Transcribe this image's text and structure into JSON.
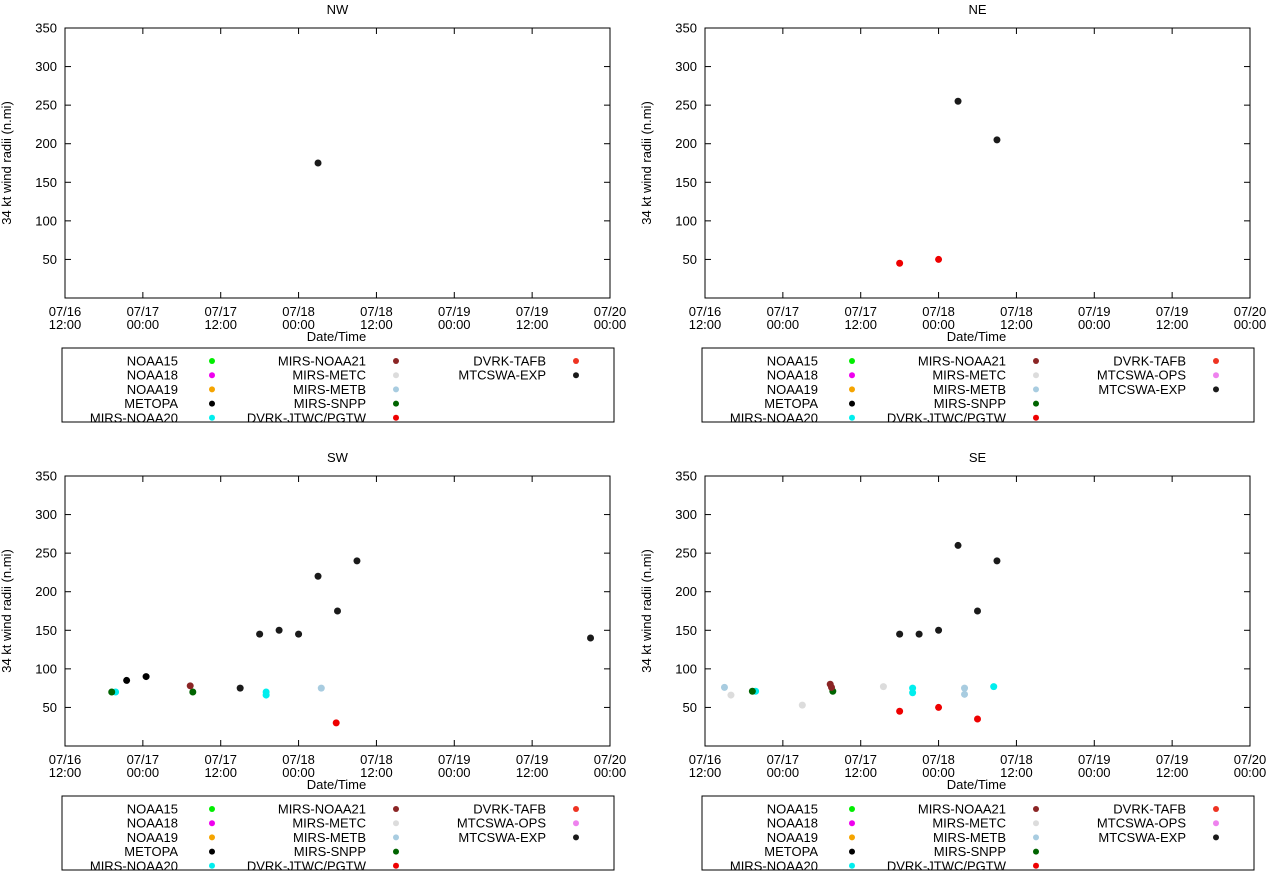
{
  "x_axis": {
    "label": "Date/Time",
    "ticks": [
      {
        "line1": "07/16",
        "line2": "12:00"
      },
      {
        "line1": "07/17",
        "line2": "00:00"
      },
      {
        "line1": "07/17",
        "line2": "12:00"
      },
      {
        "line1": "07/18",
        "line2": "00:00"
      },
      {
        "line1": "07/18",
        "line2": "12:00"
      },
      {
        "line1": "07/19",
        "line2": "00:00"
      },
      {
        "line1": "07/19",
        "line2": "12:00"
      },
      {
        "line1": "07/20",
        "line2": "00:00"
      }
    ]
  },
  "colors": {
    "NOAA15": "#00ee00",
    "NOAA18": "#ee00ee",
    "NOAA19": "#f5a400",
    "METOPA": "#000000",
    "MIRS-NOAA20": "#00eeee",
    "MIRS-NOAA21": "#8b2525",
    "MIRS-METC": "#dcdcdc",
    "MIRS-METB": "#a8cce0",
    "MIRS-SNPP": "#006400",
    "DVRK-JTWC/PGTW": "#ee0000",
    "DVRK-TAFB": "#ee3322",
    "MTCSWA-OPS": "#ee82ee",
    "MTCSWA-EXP": "#1a1a1a"
  },
  "chart_data": [
    {
      "type": "scatter",
      "title": "NW",
      "xlabel": "Date/Time",
      "ylabel": "34 kt wind radii (n.mi)",
      "xlim": [
        0,
        84
      ],
      "ylim": [
        0,
        350
      ],
      "yticks": [
        50,
        100,
        150,
        200,
        250,
        300,
        350
      ],
      "legend": [
        "NOAA15",
        "NOAA18",
        "NOAA19",
        "METOPA",
        "MIRS-NOAA20",
        "MIRS-NOAA21",
        "MIRS-METC",
        "MIRS-METB",
        "MIRS-SNPP",
        "DVRK-JTWC/PGTW",
        "DVRK-TAFB",
        "MTCSWA-EXP"
      ],
      "series": [
        {
          "name": "MTCSWA-EXP",
          "points": [
            [
              39,
              175
            ]
          ]
        }
      ]
    },
    {
      "type": "scatter",
      "title": "NE",
      "xlabel": "Date/Time",
      "ylabel": "34 kt wind radii (n.mi)",
      "xlim": [
        0,
        84
      ],
      "ylim": [
        0,
        350
      ],
      "yticks": [
        50,
        100,
        150,
        200,
        250,
        300,
        350
      ],
      "legend": [
        "NOAA15",
        "NOAA18",
        "NOAA19",
        "METOPA",
        "MIRS-NOAA20",
        "MIRS-NOAA21",
        "MIRS-METC",
        "MIRS-METB",
        "MIRS-SNPP",
        "DVRK-JTWC/PGTW",
        "DVRK-TAFB",
        "MTCSWA-OPS",
        "MTCSWA-EXP"
      ],
      "series": [
        {
          "name": "DVRK-JTWC/PGTW",
          "points": [
            [
              30,
              45
            ],
            [
              36,
              50
            ]
          ]
        },
        {
          "name": "MTCSWA-EXP",
          "points": [
            [
              39,
              255
            ],
            [
              45,
              205
            ]
          ]
        }
      ]
    },
    {
      "type": "scatter",
      "title": "SW",
      "xlabel": "Date/Time",
      "ylabel": "34 kt wind radii (n.mi)",
      "xlim": [
        0,
        84
      ],
      "ylim": [
        0,
        350
      ],
      "yticks": [
        50,
        100,
        150,
        200,
        250,
        300,
        350
      ],
      "legend": [
        "NOAA15",
        "NOAA18",
        "NOAA19",
        "METOPA",
        "MIRS-NOAA20",
        "MIRS-NOAA21",
        "MIRS-METC",
        "MIRS-METB",
        "MIRS-SNPP",
        "DVRK-JTWC/PGTW",
        "DVRK-TAFB",
        "MTCSWA-OPS",
        "MTCSWA-EXP"
      ],
      "series": [
        {
          "name": "MIRS-NOAA20",
          "points": [
            [
              7.8,
              70
            ],
            [
              31,
              70
            ],
            [
              31,
              66
            ]
          ]
        },
        {
          "name": "MIRS-SNPP",
          "points": [
            [
              7.2,
              70
            ],
            [
              19.7,
              70
            ]
          ]
        },
        {
          "name": "METOPA",
          "points": [
            [
              9.5,
              85
            ],
            [
              12.5,
              90
            ]
          ]
        },
        {
          "name": "MIRS-NOAA21",
          "points": [
            [
              19.3,
              78
            ]
          ]
        },
        {
          "name": "MTCSWA-EXP",
          "points": [
            [
              27,
              75
            ],
            [
              30,
              145
            ],
            [
              33,
              150
            ],
            [
              36,
              145
            ],
            [
              39,
              220
            ],
            [
              42,
              175
            ],
            [
              45,
              240
            ],
            [
              81,
              140
            ]
          ]
        },
        {
          "name": "MIRS-METB",
          "points": [
            [
              39.5,
              75
            ]
          ]
        },
        {
          "name": "DVRK-JTWC/PGTW",
          "points": [
            [
              41.8,
              30
            ]
          ]
        }
      ]
    },
    {
      "type": "scatter",
      "title": "SE",
      "xlabel": "Date/Time",
      "ylabel": "34 kt wind radii (n.mi)",
      "xlim": [
        0,
        84
      ],
      "ylim": [
        0,
        350
      ],
      "yticks": [
        50,
        100,
        150,
        200,
        250,
        300,
        350
      ],
      "legend": [
        "NOAA15",
        "NOAA18",
        "NOAA19",
        "METOPA",
        "MIRS-NOAA20",
        "MIRS-NOAA21",
        "MIRS-METC",
        "MIRS-METB",
        "MIRS-SNPP",
        "DVRK-JTWC/PGTW",
        "DVRK-TAFB",
        "MTCSWA-OPS",
        "MTCSWA-EXP"
      ],
      "series": [
        {
          "name": "MIRS-METB",
          "points": [
            [
              3,
              76
            ],
            [
              40,
              75
            ],
            [
              40,
              67
            ]
          ]
        },
        {
          "name": "MIRS-METC",
          "points": [
            [
              4,
              66
            ],
            [
              15,
              53
            ],
            [
              27.5,
              77
            ]
          ]
        },
        {
          "name": "MIRS-NOAA20",
          "points": [
            [
              7.8,
              71
            ],
            [
              32,
              75
            ],
            [
              32,
              69
            ],
            [
              44.5,
              77
            ]
          ]
        },
        {
          "name": "MIRS-SNPP",
          "points": [
            [
              7.3,
              71
            ],
            [
              19.7,
              71
            ]
          ]
        },
        {
          "name": "MIRS-NOAA21",
          "points": [
            [
              19.3,
              80
            ],
            [
              19.5,
              76
            ]
          ]
        },
        {
          "name": "DVRK-JTWC/PGTW",
          "points": [
            [
              30,
              45
            ],
            [
              36,
              50
            ],
            [
              42,
              35
            ]
          ]
        },
        {
          "name": "MTCSWA-EXP",
          "points": [
            [
              30,
              145
            ],
            [
              33,
              145
            ],
            [
              36,
              150
            ],
            [
              39,
              260
            ],
            [
              42,
              175
            ],
            [
              45,
              240
            ]
          ]
        }
      ]
    }
  ]
}
